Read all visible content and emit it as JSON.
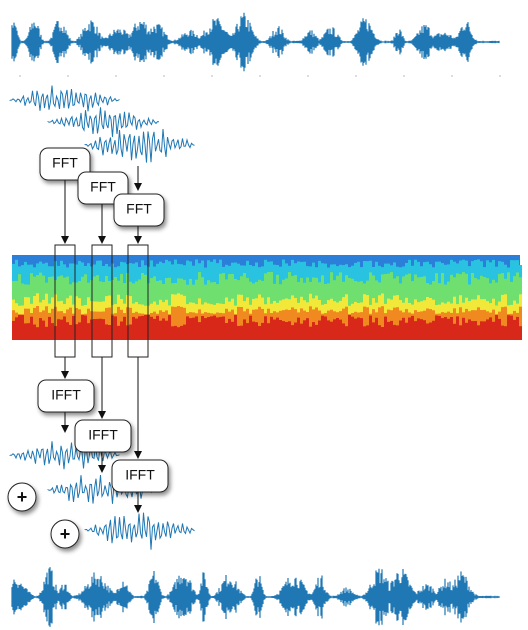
{
  "fft_labels": [
    "FFT",
    "FFT",
    "FFT"
  ],
  "ifft_labels": [
    "IFFT",
    "IFFT",
    "IFFT"
  ],
  "sum_labels": [
    "+",
    "+"
  ]
}
